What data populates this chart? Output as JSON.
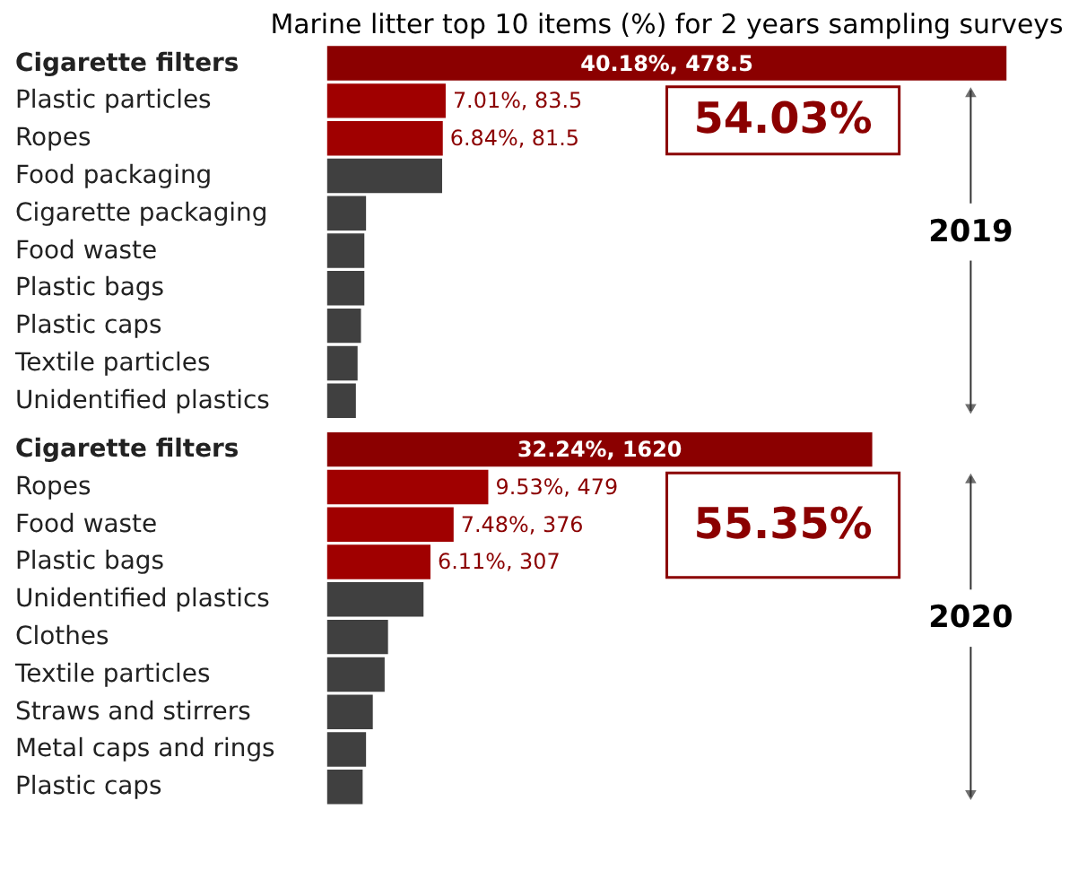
{
  "chart_data": [
    {
      "type": "bar",
      "orientation": "horizontal",
      "title": "Marine litter top 10 items (%) for 2 years sampling surveys",
      "categories": [
        "Cigarette filters",
        "Plastic particles",
        "Ropes",
        "Food packaging",
        "Cigarette packaging",
        "Food waste",
        "Plastic bags",
        "Plastic caps",
        "Textile particles",
        "Unidentified plastics"
      ],
      "values": [
        40.18,
        7.01,
        6.84,
        6.8,
        2.3,
        2.2,
        2.2,
        2.0,
        1.8,
        1.7
      ],
      "colors": [
        "#8b0000",
        "#a00000",
        "#a00000",
        "#404040",
        "#404040",
        "#404040",
        "#404040",
        "#404040",
        "#404040",
        "#404040"
      ],
      "value_labels": [
        "40.18%, 478.5",
        "7.01%, 83.5",
        "6.84%, 81.5",
        null,
        null,
        null,
        null,
        null,
        null,
        null
      ],
      "annotations": [
        "54.03%",
        "2019"
      ]
    },
    {
      "type": "bar",
      "orientation": "horizontal",
      "categories": [
        "Cigarette filters",
        "Ropes",
        "Food waste",
        "Plastic bags",
        "Unidentified plastics",
        "Clothes",
        "Textile particles",
        "Straws and stirrers",
        "Metal caps and rings",
        "Plastic caps"
      ],
      "values": [
        32.24,
        9.53,
        7.48,
        6.11,
        5.7,
        3.6,
        3.4,
        2.7,
        2.3,
        2.1
      ],
      "colors": [
        "#8b0000",
        "#a00000",
        "#a00000",
        "#a00000",
        "#404040",
        "#404040",
        "#404040",
        "#404040",
        "#404040",
        "#404040"
      ],
      "value_labels": [
        "32.24%, 1620",
        "9.53%, 479",
        "7.48%, 376",
        "6.11%, 307",
        null,
        null,
        null,
        null,
        null,
        null
      ],
      "annotations": [
        "55.35%",
        "2020"
      ]
    }
  ]
}
